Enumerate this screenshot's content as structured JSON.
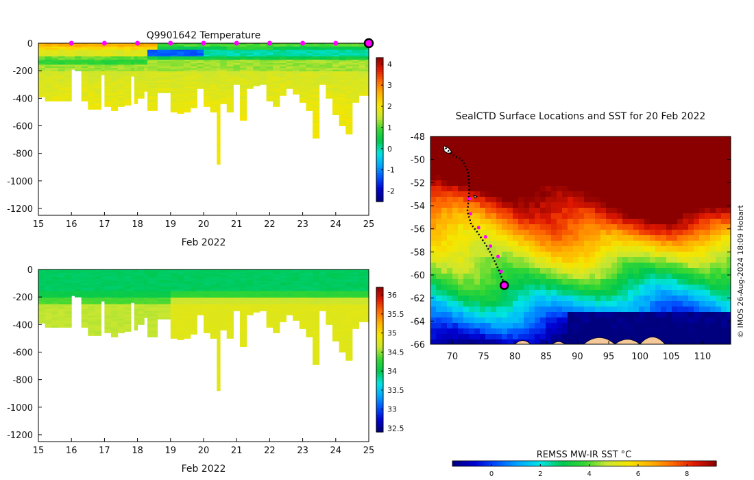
{
  "colors": {
    "jet": [
      "#00007f",
      "#0000d0",
      "#0050ff",
      "#00a8ff",
      "#00e5e5",
      "#00c850",
      "#33d633",
      "#c8e632",
      "#f5e600",
      "#ffb300",
      "#ff6a00",
      "#e01800",
      "#8a0000"
    ],
    "land": "#f5c89a",
    "marker": "#ff00ff",
    "track": "#000000"
  },
  "chart_data": [
    {
      "id": "temperature",
      "type": "heatmap",
      "title": "Q9901642  Temperature",
      "xlabel": "Feb 2022",
      "ylabel": "",
      "xlim": [
        15,
        25
      ],
      "ylim": [
        -1250,
        0
      ],
      "xticks": [
        15,
        16,
        17,
        18,
        19,
        20,
        21,
        22,
        23,
        24,
        25
      ],
      "yticks": [
        0,
        -200,
        -400,
        -600,
        -800,
        -1000,
        -1200
      ],
      "colorbar": {
        "min": -2.5,
        "max": 4.3,
        "ticks": [
          4,
          3,
          2,
          1,
          0,
          -1,
          -2
        ]
      },
      "surface_markers_x": [
        16,
        17,
        18,
        19,
        20,
        21,
        22,
        23,
        24
      ],
      "final_marker_x": 25,
      "profiles": [
        {
          "x": 15.0,
          "depth": 390
        },
        {
          "x": 15.2,
          "depth": 420
        },
        {
          "x": 15.4,
          "depth": 420
        },
        {
          "x": 15.6,
          "depth": 420
        },
        {
          "x": 15.8,
          "depth": 420
        },
        {
          "x": 16.0,
          "depth": 190
        },
        {
          "x": 16.1,
          "depth": 200
        },
        {
          "x": 16.3,
          "depth": 420
        },
        {
          "x": 16.5,
          "depth": 480
        },
        {
          "x": 16.7,
          "depth": 480
        },
        {
          "x": 16.9,
          "depth": 230
        },
        {
          "x": 17.0,
          "depth": 460
        },
        {
          "x": 17.2,
          "depth": 490
        },
        {
          "x": 17.4,
          "depth": 460
        },
        {
          "x": 17.6,
          "depth": 450
        },
        {
          "x": 17.8,
          "depth": 240
        },
        {
          "x": 17.9,
          "depth": 440
        },
        {
          "x": 18.0,
          "depth": 400
        },
        {
          "x": 18.2,
          "depth": 350
        },
        {
          "x": 18.3,
          "depth": 490
        },
        {
          "x": 18.6,
          "depth": 360
        },
        {
          "x": 19.0,
          "depth": 500
        },
        {
          "x": 19.2,
          "depth": 510
        },
        {
          "x": 19.4,
          "depth": 500
        },
        {
          "x": 19.6,
          "depth": 470
        },
        {
          "x": 19.8,
          "depth": 330
        },
        {
          "x": 20.0,
          "depth": 460
        },
        {
          "x": 20.2,
          "depth": 500
        },
        {
          "x": 20.4,
          "depth": 880
        },
        {
          "x": 20.5,
          "depth": 440
        },
        {
          "x": 20.7,
          "depth": 500
        },
        {
          "x": 20.9,
          "depth": 300
        },
        {
          "x": 21.1,
          "depth": 560
        },
        {
          "x": 21.3,
          "depth": 330
        },
        {
          "x": 21.5,
          "depth": 310
        },
        {
          "x": 21.7,
          "depth": 300
        },
        {
          "x": 21.9,
          "depth": 420
        },
        {
          "x": 22.1,
          "depth": 460
        },
        {
          "x": 22.3,
          "depth": 380
        },
        {
          "x": 22.5,
          "depth": 330
        },
        {
          "x": 22.7,
          "depth": 370
        },
        {
          "x": 22.9,
          "depth": 430
        },
        {
          "x": 23.1,
          "depth": 490
        },
        {
          "x": 23.3,
          "depth": 690
        },
        {
          "x": 23.5,
          "depth": 300
        },
        {
          "x": 23.7,
          "depth": 400
        },
        {
          "x": 23.9,
          "depth": 520
        },
        {
          "x": 24.1,
          "depth": 600
        },
        {
          "x": 24.3,
          "depth": 660
        },
        {
          "x": 24.5,
          "depth": 430
        },
        {
          "x": 24.7,
          "depth": 380
        },
        {
          "x": 24.9,
          "depth": 380
        }
      ]
    },
    {
      "id": "salinity",
      "type": "heatmap",
      "title": "",
      "xlabel": "Feb 2022",
      "ylabel": "",
      "xlim": [
        15,
        25
      ],
      "ylim": [
        -1250,
        0
      ],
      "xticks": [
        15,
        16,
        17,
        18,
        19,
        20,
        21,
        22,
        23,
        24,
        25
      ],
      "yticks": [
        0,
        -200,
        -400,
        -600,
        -800,
        -1000,
        -1200
      ],
      "colorbar": {
        "min": 32.4,
        "max": 36.2,
        "ticks": [
          36,
          35.5,
          35,
          34.5,
          34,
          33.5,
          33,
          32.5
        ]
      }
    },
    {
      "id": "sst_map",
      "type": "heatmap",
      "title": "SealCTD Surface Locations and SST for 20 Feb 2022",
      "xlim": [
        66.5,
        114.5
      ],
      "ylim": [
        -66,
        -48
      ],
      "xticks": [
        70,
        75,
        80,
        85,
        90,
        95,
        100,
        105,
        110
      ],
      "yticks": [
        -48,
        -50,
        -52,
        -54,
        -56,
        -58,
        -60,
        -62,
        -64,
        -66
      ],
      "colorbar": {
        "label": "REMSS MW-IR SST °C",
        "min": -1.6,
        "max": 9.2,
        "ticks": [
          0,
          2,
          4,
          6,
          8
        ]
      },
      "track": [
        {
          "lon": 68.9,
          "lat": -49.0
        },
        {
          "lon": 70.0,
          "lat": -49.6
        },
        {
          "lon": 71.5,
          "lat": -50.0
        },
        {
          "lon": 72.5,
          "lat": -51.0
        },
        {
          "lon": 72.7,
          "lat": -52.2
        },
        {
          "lon": 72.6,
          "lat": -53.5
        },
        {
          "lon": 72.4,
          "lat": -54.5
        },
        {
          "lon": 73.0,
          "lat": -55.6
        },
        {
          "lon": 74.0,
          "lat": -56.3
        },
        {
          "lon": 75.5,
          "lat": -57.5
        },
        {
          "lon": 76.5,
          "lat": -58.5
        },
        {
          "lon": 77.6,
          "lat": -59.8
        },
        {
          "lon": 78.3,
          "lat": -60.8
        }
      ],
      "track_markers": [
        {
          "lon": 72.7,
          "lat": -53.4
        },
        {
          "lon": 72.9,
          "lat": -54.7
        },
        {
          "lon": 74.2,
          "lat": -55.9
        },
        {
          "lon": 75.3,
          "lat": -56.7
        },
        {
          "lon": 76.1,
          "lat": -57.5
        },
        {
          "lon": 77.3,
          "lat": -58.4
        },
        {
          "lon": 77.8,
          "lat": -59.7
        }
      ],
      "current_position": {
        "lon": 78.3,
        "lat": -60.9
      }
    }
  ],
  "credit": "© IMOS 26-Aug-2024 18:09 Hobart"
}
